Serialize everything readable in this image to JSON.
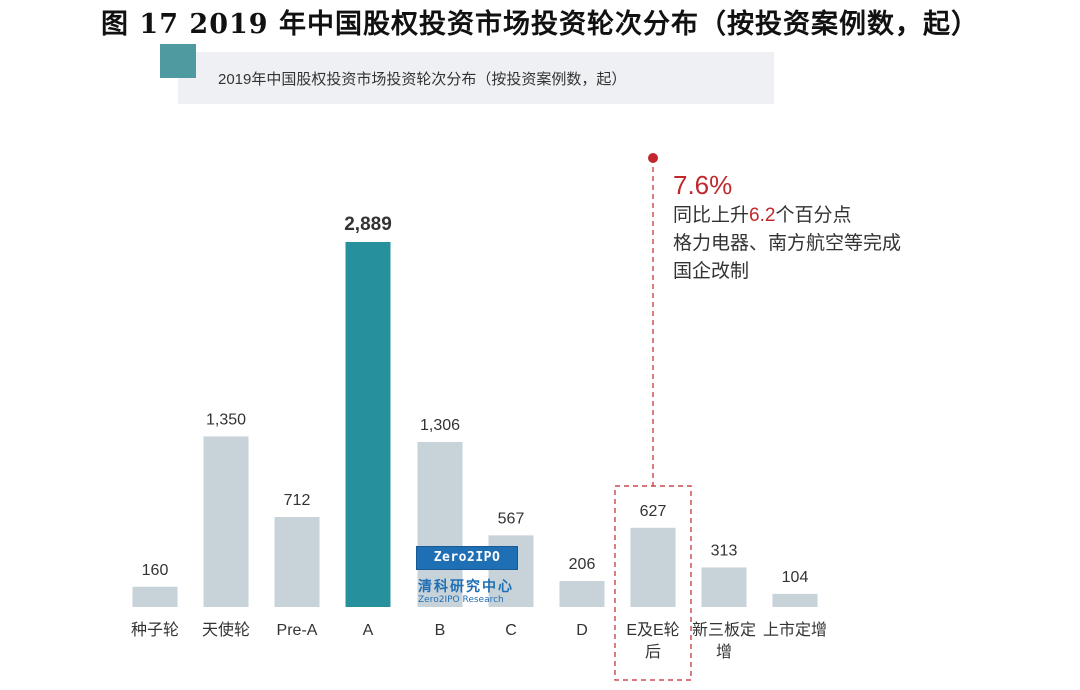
{
  "figure_title": "图 17 2019 年中国股权投资市场投资轮次分布（按投资案例数，起）",
  "banner_text": "2019年中国股权投资市场投资轮次分布（按投资案例数，起）",
  "annotation": {
    "percent": "7.6%",
    "line1_prefix": "同比上升",
    "line1_value": "6.2",
    "line1_suffix": "个百分点",
    "line2": "格力电器、南方航空等完成",
    "line3": "国企改制"
  },
  "logo": {
    "box_text": "Zero2IPO",
    "cn": "清科研究中心",
    "en": "Zero2IPO Research"
  },
  "colors": {
    "bar": "#c7d2d9",
    "highlight_bar": "#26919c",
    "annotation_red": "#c0282d",
    "label": "#333333"
  },
  "chart_data": {
    "type": "bar",
    "title": "2019年中国股权投资市场投资轮次分布（按投资案例数，起）",
    "categories": [
      "种子轮",
      "天使轮",
      "Pre-A",
      "A",
      "B",
      "C",
      "D",
      "E及E轮后",
      "新三板定增",
      "上市定增"
    ],
    "category_lines": [
      [
        "种子轮"
      ],
      [
        "天使轮"
      ],
      [
        "Pre-A"
      ],
      [
        "A"
      ],
      [
        "B"
      ],
      [
        "C"
      ],
      [
        "D"
      ],
      [
        "E及E轮",
        "后"
      ],
      [
        "新三板定",
        "增"
      ],
      [
        "上市定增"
      ]
    ],
    "values": [
      160,
      1350,
      712,
      2889,
      1306,
      567,
      206,
      627,
      313,
      104
    ],
    "value_labels": [
      "160",
      "1,350",
      "712",
      "2,889",
      "1,306",
      "567",
      "206",
      "627",
      "313",
      "104"
    ],
    "highlight_index": 3,
    "annotated_index": 7,
    "ylim": [
      0,
      2889
    ],
    "xlabel": "",
    "ylabel": "",
    "grid": false
  }
}
